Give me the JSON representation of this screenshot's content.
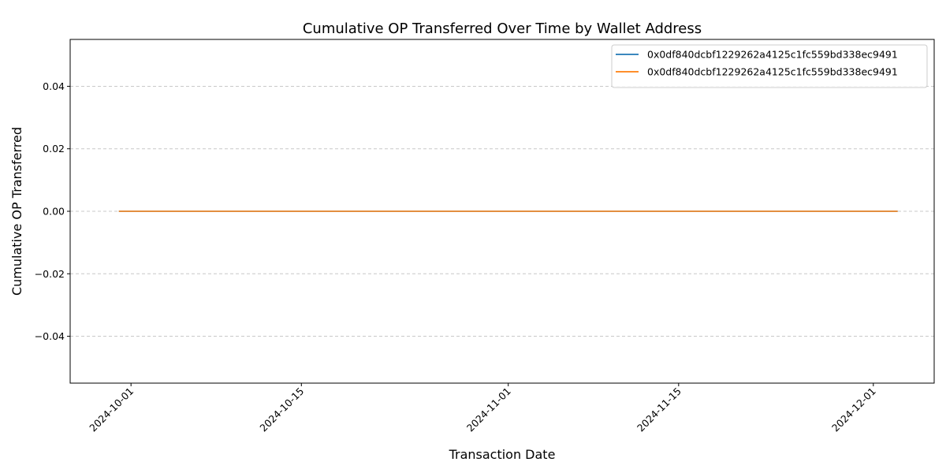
{
  "chart_data": {
    "type": "line",
    "title": "Cumulative OP Transferred Over Time by Wallet Address",
    "xlabel": "Transaction Date",
    "ylabel": "Cumulative OP Transferred",
    "xlim": [
      "2024-09-26",
      "2024-12-06"
    ],
    "ylim": [
      -0.055,
      0.055
    ],
    "x_ticks": [
      "2024-10-01",
      "2024-10-15",
      "2024-11-01",
      "2024-11-15",
      "2024-12-01"
    ],
    "y_ticks": [
      -0.04,
      -0.02,
      0.0,
      0.02,
      0.04
    ],
    "y_tick_labels": [
      "−0.04",
      "−0.02",
      "0.00",
      "0.02",
      "0.04"
    ],
    "grid": "y-dashed",
    "legend_position": "top-right",
    "series": [
      {
        "name": "0x0df840dcbf1229262a4125c1fc559bd338ec9491",
        "color": "#1f77b4",
        "x": [
          "2024-09-30",
          "2024-12-03"
        ],
        "y": [
          0,
          0
        ]
      },
      {
        "name": "0x0df840dcbf1229262a4125c1fc559bd338ec9491",
        "color": "#ff7f0e",
        "x": [
          "2024-09-30",
          "2024-12-03"
        ],
        "y": [
          0,
          0
        ]
      }
    ]
  }
}
